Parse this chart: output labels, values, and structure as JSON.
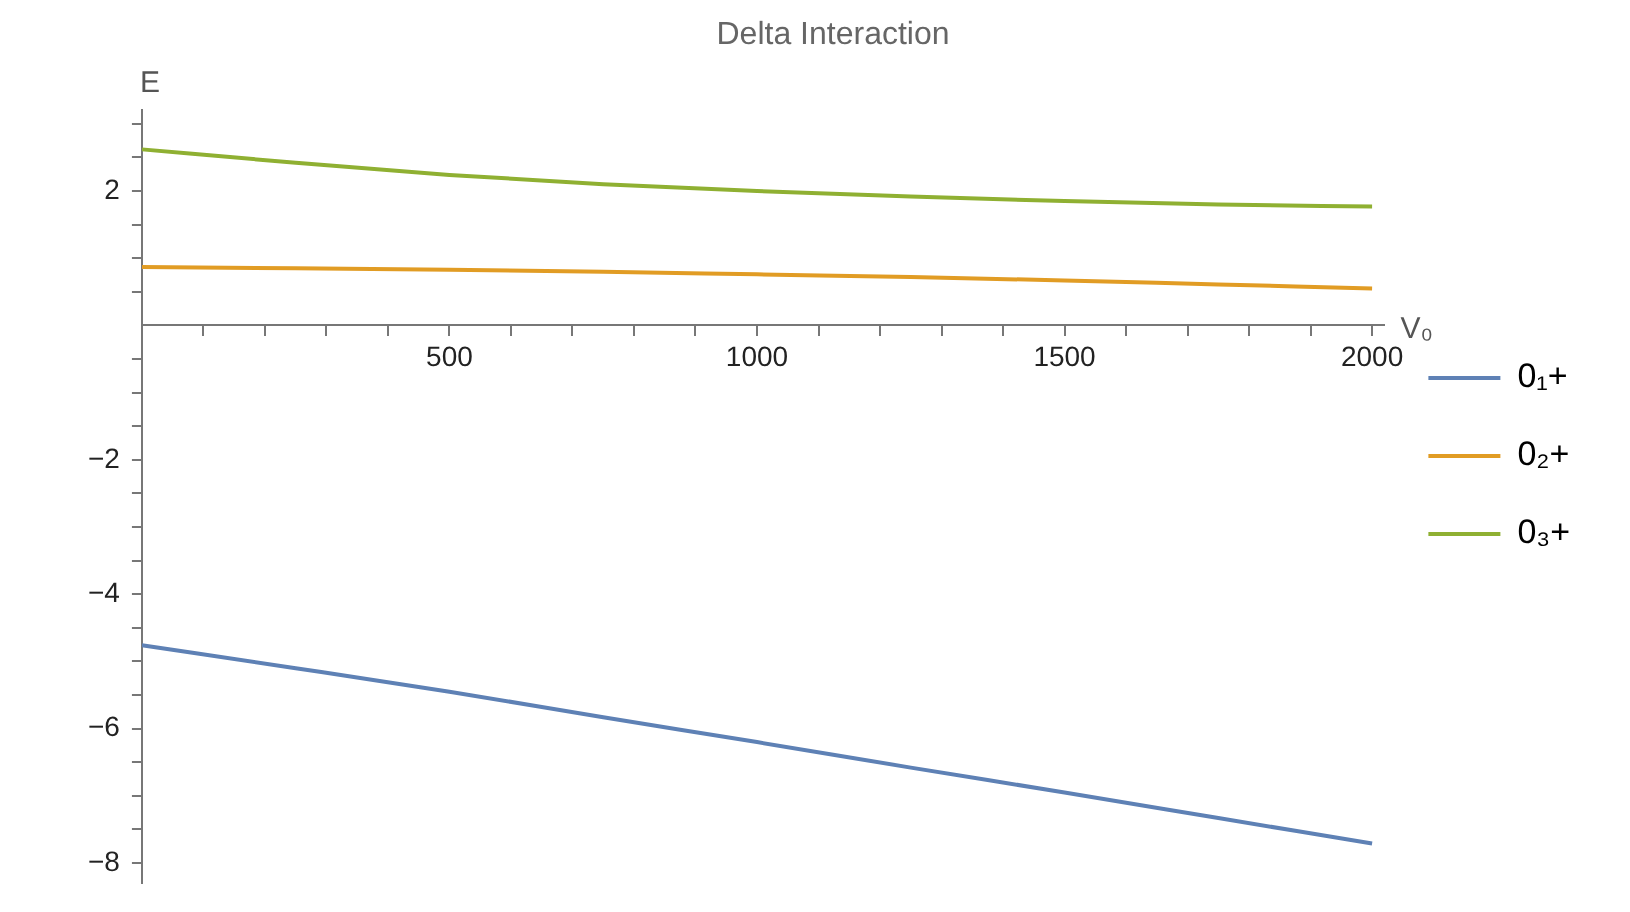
{
  "chart_data": {
    "type": "line",
    "title": "Delta Interaction",
    "xlabel": "V₀",
    "ylabel": "E",
    "x": [
      0,
      250,
      500,
      750,
      1000,
      1250,
      1500,
      1750,
      2000
    ],
    "series": [
      {
        "name": "0₁+",
        "color": "#5e81b5",
        "values": [
          -4.76,
          -5.1,
          -5.45,
          -5.83,
          -6.2,
          -6.58,
          -6.95,
          -7.33,
          -7.71
        ]
      },
      {
        "name": "0₂+",
        "color": "#e19c24",
        "values": [
          0.87,
          0.85,
          0.83,
          0.8,
          0.76,
          0.72,
          0.67,
          0.61,
          0.55
        ]
      },
      {
        "name": "0₃+",
        "color": "#8fb032",
        "values": [
          2.62,
          2.42,
          2.24,
          2.1,
          2.0,
          1.92,
          1.85,
          1.8,
          1.77
        ]
      }
    ],
    "xlim": [
      0,
      2020
    ],
    "ylim": [
      -8.3,
      3.2
    ],
    "xticks": [
      {
        "value": 100,
        "label": null
      },
      {
        "value": 200,
        "label": null
      },
      {
        "value": 300,
        "label": null
      },
      {
        "value": 400,
        "label": null
      },
      500,
      {
        "value": 600,
        "label": null
      },
      {
        "value": 700,
        "label": null
      },
      {
        "value": 800,
        "label": null
      },
      {
        "value": 900,
        "label": null
      },
      1000,
      {
        "value": 1100,
        "label": null
      },
      {
        "value": 1200,
        "label": null
      },
      {
        "value": 1300,
        "label": null
      },
      {
        "value": 1400,
        "label": null
      },
      1500,
      {
        "value": 1600,
        "label": null
      },
      {
        "value": 1700,
        "label": null
      },
      {
        "value": 1800,
        "label": null
      },
      {
        "value": 1900,
        "label": null
      },
      2000
    ],
    "yticks": [
      -8,
      {
        "value": -7.5,
        "label": null
      },
      {
        "value": -7,
        "label": null
      },
      {
        "value": -6.5,
        "label": null
      },
      -6,
      {
        "value": -5.5,
        "label": null
      },
      {
        "value": -5,
        "label": null
      },
      {
        "value": -4.5,
        "label": null
      },
      -4,
      {
        "value": -3.5,
        "label": null
      },
      {
        "value": -3,
        "label": null
      },
      {
        "value": -2.5,
        "label": null
      },
      -2,
      {
        "value": -1.5,
        "label": null
      },
      {
        "value": -1,
        "label": null
      },
      {
        "value": -0.5,
        "label": null
      },
      {
        "value": 0.5,
        "label": null
      },
      {
        "value": 1,
        "label": null
      },
      {
        "value": 1.5,
        "label": null
      },
      2,
      {
        "value": 2.5,
        "label": null
      },
      {
        "value": 3,
        "label": null
      }
    ],
    "grid": false,
    "legend": "right",
    "marker": "none",
    "line_style": "solid"
  }
}
